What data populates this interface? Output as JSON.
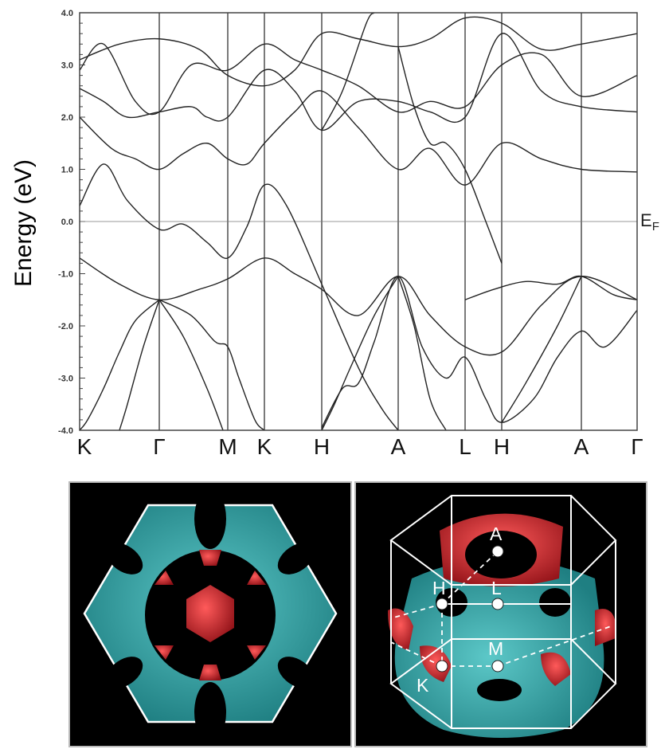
{
  "band_plot": {
    "ylabel": "Energy (eV)",
    "fermi_label": "E",
    "fermi_sub": "F",
    "ylim": [
      -4.0,
      4.0
    ],
    "yticks": [
      "4.0",
      "3.0",
      "2.0",
      "1.0",
      "0.0",
      "-1.0",
      "-2.0",
      "-3.0",
      "-4.0"
    ],
    "kpoints": [
      "K",
      "Γ",
      "M",
      "K",
      "H",
      "A",
      "L",
      "H",
      "A",
      "Γ"
    ]
  },
  "fermi_surface_3d": {
    "labels": [
      "A",
      "H",
      "L",
      "M",
      "K"
    ]
  },
  "colors": {
    "band_line": "#222222",
    "surface_cyan": "#2fa6a6",
    "surface_red": "#c8262e",
    "panel_bg": "#000000",
    "bz_line": "#ffffff"
  }
}
